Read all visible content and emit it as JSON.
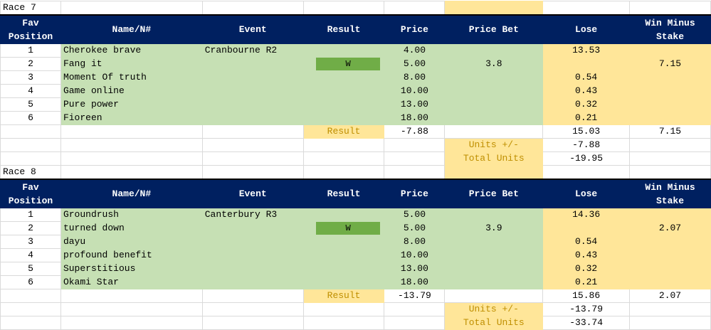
{
  "headers": [
    "Fav\nPosition",
    "Name/N#",
    "Event",
    "Result",
    "Price",
    "Price Bet",
    "Lose",
    "Win Minus\nStake"
  ],
  "colors": {
    "header": "#002060",
    "green": "#c6e0b4",
    "yellow": "#ffe699",
    "win": "#70ad47",
    "label": "#bf8f00"
  },
  "races": [
    {
      "title": "Race 7",
      "event": "Cranbourne R2",
      "price_bet": "3.8",
      "runners": [
        {
          "pos": "1",
          "name": "Cherokee brave",
          "result": "",
          "price": "4.00",
          "lose": "13.53",
          "win": ""
        },
        {
          "pos": "2",
          "name": "Fang it",
          "result": "W",
          "price": "5.00",
          "lose": "",
          "win": "7.15"
        },
        {
          "pos": "3",
          "name": "Moment Of truth",
          "result": "",
          "price": "8.00",
          "lose": "0.54",
          "win": ""
        },
        {
          "pos": "4",
          "name": "Game online",
          "result": "",
          "price": "10.00",
          "lose": "0.43",
          "win": ""
        },
        {
          "pos": "5",
          "name": "Pure power",
          "result": "",
          "price": "13.00",
          "lose": "0.32",
          "win": ""
        },
        {
          "pos": "6",
          "name": "Fioreen",
          "result": "",
          "price": "18.00",
          "lose": "0.21",
          "win": ""
        }
      ],
      "result_label": "Result",
      "result_value": "-7.88",
      "lose_total": "15.03",
      "win_total": "7.15",
      "units_label": "Units +/-",
      "units_value": "-7.88",
      "total_label": "Total Units",
      "total_value": "-19.95"
    },
    {
      "title": "Race 8",
      "event": "Canterbury R3",
      "price_bet": "3.9",
      "runners": [
        {
          "pos": "1",
          "name": "Groundrush",
          "result": "",
          "price": "5.00",
          "lose": "14.36",
          "win": ""
        },
        {
          "pos": "2",
          "name": "turned down",
          "result": "W",
          "price": "5.00",
          "lose": "",
          "win": "2.07"
        },
        {
          "pos": "3",
          "name": "dayu",
          "result": "",
          "price": "8.00",
          "lose": "0.54",
          "win": ""
        },
        {
          "pos": "4",
          "name": "profound benefit",
          "result": "",
          "price": "10.00",
          "lose": "0.43",
          "win": ""
        },
        {
          "pos": "5",
          "name": "Superstitious",
          "result": "",
          "price": "13.00",
          "lose": "0.32",
          "win": ""
        },
        {
          "pos": "6",
          "name": "Okami Star",
          "result": "",
          "price": "18.00",
          "lose": "0.21",
          "win": ""
        }
      ],
      "result_label": "Result",
      "result_value": "-13.79",
      "lose_total": "15.86",
      "win_total": "2.07",
      "units_label": "Units +/-",
      "units_value": "-13.79",
      "total_label": "Total Units",
      "total_value": "-33.74"
    }
  ]
}
